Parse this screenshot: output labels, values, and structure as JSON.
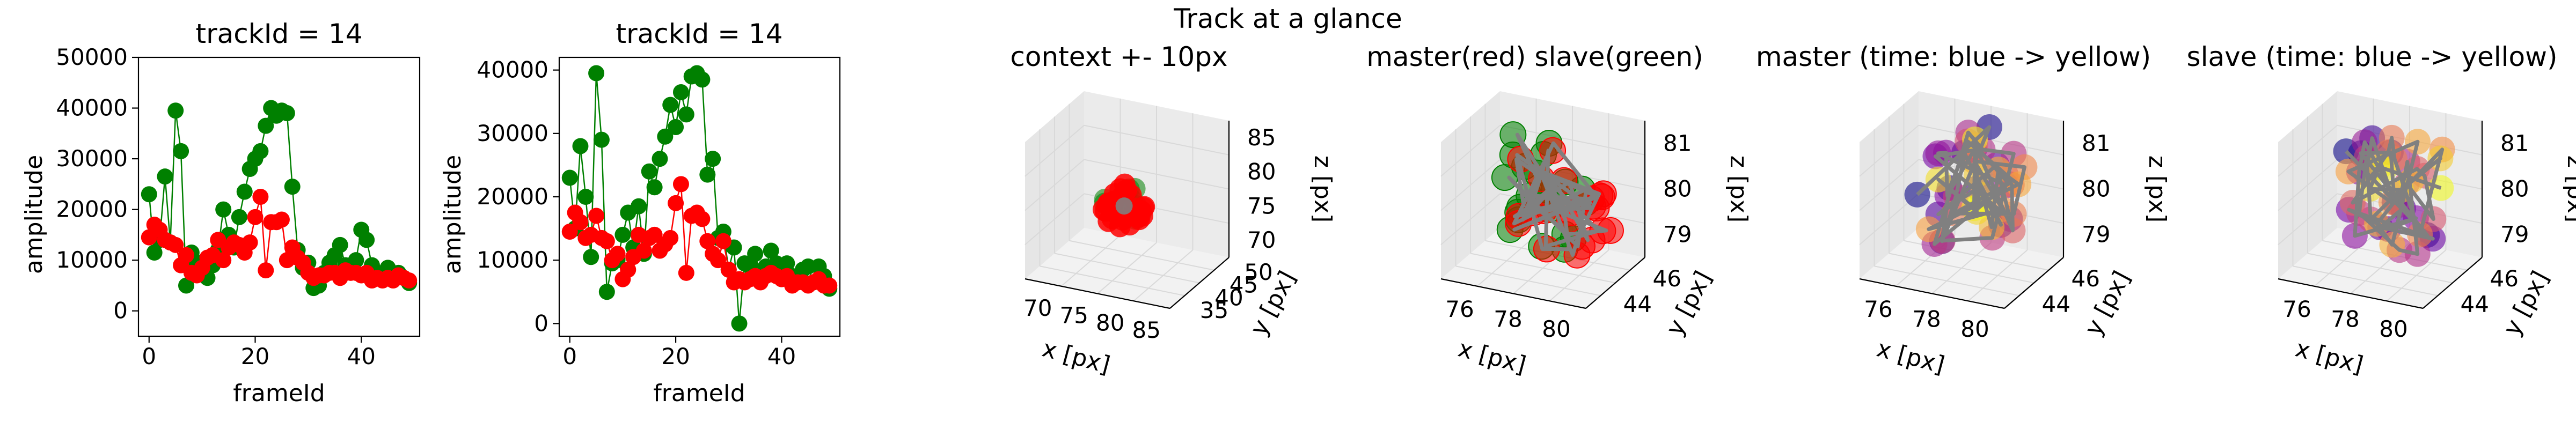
{
  "figure": {
    "suptitle": "Track at a glance"
  },
  "chart_data": [
    {
      "type": "line",
      "title": "trackId = 14",
      "xlabel": "frameId",
      "ylabel": "amplitude",
      "xlim": [
        -2,
        51
      ],
      "ylim": [
        -5000,
        50000
      ],
      "xticks": [
        0,
        20,
        40
      ],
      "yticks": [
        0,
        10000,
        20000,
        30000,
        40000,
        50000
      ],
      "x": [
        0,
        1,
        2,
        3,
        4,
        5,
        6,
        7,
        8,
        9,
        10,
        11,
        12,
        13,
        14,
        15,
        16,
        17,
        18,
        19,
        20,
        21,
        22,
        23,
        24,
        25,
        26,
        27,
        28,
        29,
        30,
        31,
        32,
        33,
        34,
        35,
        36,
        37,
        38,
        39,
        40,
        41,
        42,
        43,
        44,
        45,
        46,
        47,
        48,
        49
      ],
      "series": [
        {
          "color": "#008000",
          "values": [
            23000,
            11500,
            14000,
            26500,
            13500,
            39500,
            31500,
            5000,
            11500,
            9500,
            7500,
            6500,
            9000,
            12000,
            20000,
            15000,
            12500,
            18500,
            23500,
            28000,
            30000,
            31500,
            36500,
            40000,
            38500,
            39500,
            39000,
            24500,
            12000,
            8500,
            9500,
            4500,
            5000,
            7500,
            9500,
            11000,
            13000,
            9000,
            8500,
            10000,
            16000,
            14000,
            9000,
            7500,
            7500,
            8500,
            6500,
            7500,
            6500,
            5500
          ]
        },
        {
          "color": "#ff0000",
          "values": [
            14500,
            17000,
            16000,
            14000,
            13500,
            13000,
            9000,
            11000,
            7500,
            7000,
            8500,
            10500,
            11000,
            14000,
            10000,
            12500,
            13500,
            13000,
            11500,
            13500,
            18500,
            22500,
            8000,
            17500,
            17500,
            18000,
            10000,
            12500,
            10500,
            9500,
            7500,
            6500,
            7000,
            7000,
            7500,
            7500,
            6500,
            8000,
            7500,
            7500,
            7000,
            7500,
            6000,
            6500,
            6000,
            6500,
            6000,
            7000,
            6500,
            6000
          ]
        }
      ]
    },
    {
      "type": "line",
      "title": "trackId = 14",
      "xlabel": "frameId",
      "ylabel": "amplitude",
      "xlim": [
        -2,
        51
      ],
      "ylim": [
        -2000,
        42000
      ],
      "xticks": [
        0,
        20,
        40
      ],
      "yticks": [
        0,
        10000,
        20000,
        30000,
        40000
      ],
      "x": [
        0,
        1,
        2,
        3,
        4,
        5,
        6,
        7,
        8,
        9,
        10,
        11,
        12,
        13,
        14,
        15,
        16,
        17,
        18,
        19,
        20,
        21,
        22,
        23,
        24,
        25,
        26,
        27,
        28,
        29,
        30,
        31,
        32,
        33,
        34,
        35,
        36,
        37,
        38,
        39,
        40,
        41,
        42,
        43,
        44,
        45,
        46,
        47,
        48,
        49
      ],
      "series": [
        {
          "color": "#008000",
          "values": [
            23000,
            15000,
            28000,
            20000,
            10500,
            39500,
            29000,
            5000,
            9500,
            10000,
            14000,
            17500,
            12000,
            18500,
            11000,
            24000,
            21500,
            26000,
            29500,
            34500,
            31000,
            36500,
            33000,
            39000,
            39500,
            38500,
            23500,
            26000,
            13500,
            14500,
            8500,
            12000,
            0,
            9500,
            9000,
            11000,
            7500,
            9000,
            11500,
            9500,
            7500,
            9500,
            7500,
            6500,
            8500,
            9000,
            6500,
            9000,
            7500,
            5500
          ]
        },
        {
          "color": "#ff0000",
          "values": [
            14500,
            17500,
            16000,
            13500,
            14000,
            17000,
            13500,
            13000,
            10000,
            11000,
            7000,
            8500,
            10500,
            14000,
            11500,
            13500,
            14000,
            11500,
            12500,
            13500,
            19000,
            22000,
            8000,
            17000,
            17500,
            16500,
            13000,
            11000,
            10000,
            13000,
            8500,
            6500,
            7000,
            6500,
            7000,
            7500,
            6500,
            7500,
            8000,
            7500,
            7000,
            7500,
            6000,
            6500,
            6500,
            6000,
            6500,
            7000,
            6000,
            6000
          ]
        }
      ]
    },
    {
      "type": "scatter",
      "title": "context +- 10px",
      "xlabel": "x [px]",
      "ylabel": "y [px]",
      "zlabel": "z [px]",
      "xticks": [
        "70",
        "75",
        "80",
        "85"
      ],
      "yticks": [
        "35",
        "40",
        "45",
        "50"
      ],
      "zticks": [
        "70",
        "75",
        "80",
        "85"
      ],
      "series": [
        {
          "name": "",
          "color": "#008000",
          "marker_scale": 0.9
        },
        {
          "name": "",
          "color": "#ff0000",
          "marker_scale": 0.9
        }
      ]
    },
    {
      "type": "scatter",
      "title": "master(red) slave(green)",
      "xlabel": "x [px]",
      "ylabel": "y [px]",
      "zlabel": "z [px]",
      "xticks": [
        "76",
        "78",
        "80"
      ],
      "yticks": [
        "44",
        "46"
      ],
      "zticks": [
        "79",
        "80",
        "81"
      ],
      "series": [
        {
          "name": "",
          "color": "#008000",
          "alpha": 0.55
        },
        {
          "name": "",
          "color": "#ff0000",
          "alpha": 0.55
        }
      ],
      "trajectory_color": "#808080"
    },
    {
      "type": "scatter",
      "title": "master (time: blue -> yellow)",
      "xlabel": "x [px]",
      "ylabel": "y [px]",
      "zlabel": "z [px]",
      "xticks": [
        "76",
        "78",
        "80"
      ],
      "yticks": [
        "44",
        "46"
      ],
      "zticks": [
        "79",
        "80",
        "81"
      ],
      "colormap": [
        "#0d0887",
        "#7e03a8",
        "#cc4778",
        "#f89540",
        "#f0f921"
      ],
      "trajectory_color": "#808080"
    },
    {
      "type": "scatter",
      "title": "slave (time: blue -> yellow)",
      "xlabel": "x [px]",
      "ylabel": "y [px]",
      "zlabel": "z [px]",
      "xticks": [
        "76",
        "78",
        "80"
      ],
      "yticks": [
        "44",
        "46"
      ],
      "zticks": [
        "79",
        "80",
        "81"
      ],
      "colormap": [
        "#0d0887",
        "#7e03a8",
        "#cc4778",
        "#f89540",
        "#f0f921"
      ],
      "trajectory_color": "#808080"
    }
  ]
}
